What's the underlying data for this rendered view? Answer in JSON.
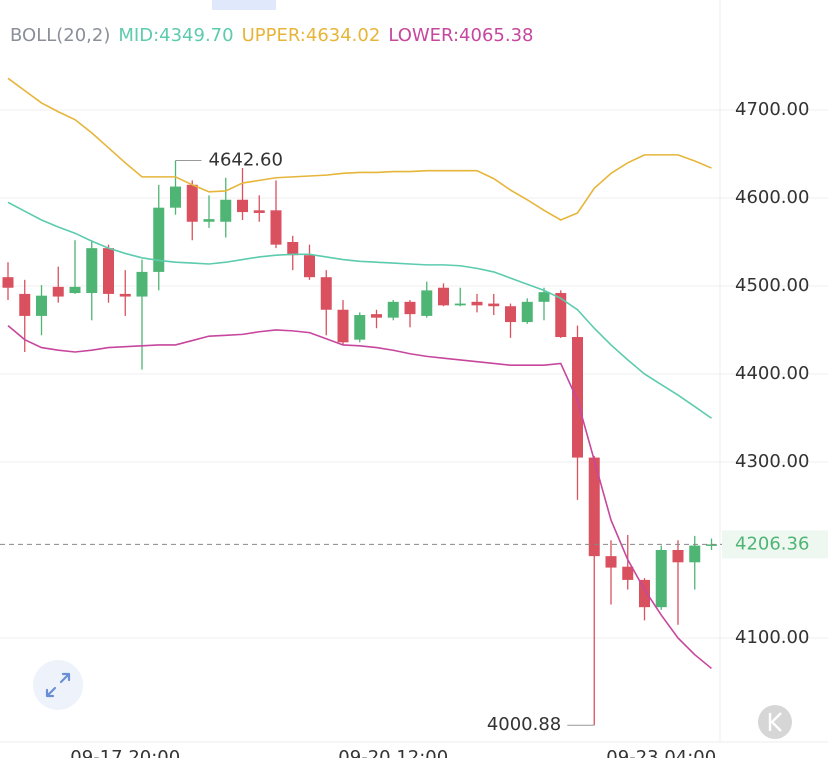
{
  "chart_data": {
    "type": "candlestick",
    "title": "BOLL(20,2)",
    "categories": [
      null,
      null,
      null,
      null,
      null,
      null,
      null,
      "09-17 20:00",
      null,
      null,
      null,
      null,
      null,
      null,
      null,
      null,
      null,
      null,
      null,
      null,
      null,
      null,
      null,
      "09-20 12:00",
      null,
      null,
      null,
      null,
      null,
      null,
      null,
      null,
      null,
      null,
      null,
      null,
      null,
      null,
      null,
      "09-23 04:00",
      null,
      null,
      null
    ],
    "open": [
      4510,
      4491,
      4466,
      4499,
      4492,
      4492,
      4543,
      4491,
      4488,
      4516,
      4589,
      4615,
      4573,
      4573,
      4598,
      4586,
      4586,
      4550,
      4535,
      4510,
      4473,
      4439,
      4468,
      4464,
      4482,
      4466,
      4498,
      4478,
      4482,
      4480,
      4477,
      4459,
      4482,
      4492,
      4442,
      4305,
      4193,
      4181,
      4166,
      4135,
      4200,
      4186,
      4205
    ],
    "high": [
      4527,
      4507,
      4501,
      4522,
      4552,
      4552,
      4547,
      4518,
      4530,
      4615,
      4642.6,
      4620,
      4603,
      4623,
      4634,
      4603,
      4620,
      4557,
      4547,
      4518,
      4484,
      4470,
      4473,
      4484,
      4484,
      4505,
      4503,
      4498,
      4491,
      4491,
      4480,
      4486,
      4498,
      4495,
      4455,
      4307,
      4211,
      4217,
      4168,
      4205,
      4211,
      4216,
      4213
    ],
    "low": [
      4484,
      4425,
      4444,
      4481,
      4491,
      4461,
      4481,
      4466,
      4405,
      4495,
      4581,
      4552,
      4566,
      4555,
      4575,
      4573,
      4543,
      4518,
      4507,
      4444,
      4433,
      4436,
      4452,
      4461,
      4453,
      4464,
      4477,
      4477,
      4470,
      4467,
      4441,
      4457,
      4461,
      4441,
      4257,
      4000.88,
      4138,
      4155,
      4120,
      4132,
      4115,
      4155,
      4200
    ],
    "close": [
      4498,
      4466,
      4489,
      4488,
      4499,
      4543,
      4491,
      4488,
      4516,
      4589,
      4613,
      4573,
      4576,
      4598,
      4584,
      4583,
      4547,
      4535,
      4510,
      4473,
      4436,
      4467,
      4464,
      4482,
      4468,
      4495,
      4478,
      4480,
      4478,
      4477,
      4459,
      4482,
      4493,
      4442,
      4305,
      4193,
      4180,
      4166,
      4135,
      4200,
      4186,
      4205,
      4206.36
    ],
    "up_color": "#4fb574",
    "down_color": "#d9505e",
    "series": [
      {
        "name": "MID:4349.70",
        "color": "#5ccbae",
        "values": [
          4595,
          4585,
          4575,
          4567,
          4560,
          4551,
          4543,
          4537,
          4532,
          4529,
          4527,
          4526,
          4525,
          4527,
          4530,
          4533,
          4535,
          4536,
          4536,
          4533,
          4530,
          4528,
          4527,
          4526,
          4525,
          4524,
          4524,
          4523,
          4520,
          4516,
          4509,
          4502,
          4495,
          4486,
          4473,
          4452,
          4433,
          4416,
          4400,
          4388,
          4376,
          4363,
          4349.7
        ]
      },
      {
        "name": "UPPER:4634.02",
        "color": "#e6b53a",
        "values": [
          4736,
          4722,
          4708,
          4698,
          4689,
          4674,
          4657,
          4640,
          4624,
          4624,
          4624,
          4615,
          4607,
          4608,
          4617,
          4620,
          4623,
          4624,
          4625,
          4626,
          4628,
          4629,
          4629,
          4630,
          4630,
          4631,
          4631,
          4631,
          4631,
          4622,
          4609,
          4598,
          4586,
          4575,
          4583,
          4611,
          4628,
          4640,
          4649,
          4649,
          4649,
          4642,
          4634.02
        ]
      },
      {
        "name": "LOWER:4065.38",
        "color": "#c6479d",
        "values": [
          4455,
          4439,
          4430,
          4427,
          4425,
          4427,
          4430,
          4431,
          4432,
          4433,
          4433,
          4438,
          4443,
          4444,
          4445,
          4448,
          4450,
          4449,
          4447,
          4440,
          4433,
          4432,
          4430,
          4427,
          4423,
          4420,
          4418,
          4416,
          4414,
          4412,
          4410,
          4410,
          4410,
          4412,
          4370,
          4302,
          4234,
          4189,
          4155,
          4126,
          4100,
          4081,
          4065.38
        ]
      }
    ],
    "ylim": [
      3963.6,
      4825
    ],
    "yticks": [
      {
        "value": 4100,
        "label": "4100.00"
      },
      {
        "value": 4300,
        "label": "4300.00"
      },
      {
        "value": 4400,
        "label": "4400.00"
      },
      {
        "value": 4500,
        "label": "4500.00"
      },
      {
        "value": 4600,
        "label": "4600.00"
      },
      {
        "value": 4700,
        "label": "4700.00"
      }
    ],
    "grid": true,
    "high_marker": {
      "value": 4642.6,
      "label": "4642.60"
    },
    "low_marker": {
      "value": 4000.88,
      "label": "4000.88"
    },
    "last_price": {
      "value": 4206.36,
      "label": "4206.36"
    }
  }
}
